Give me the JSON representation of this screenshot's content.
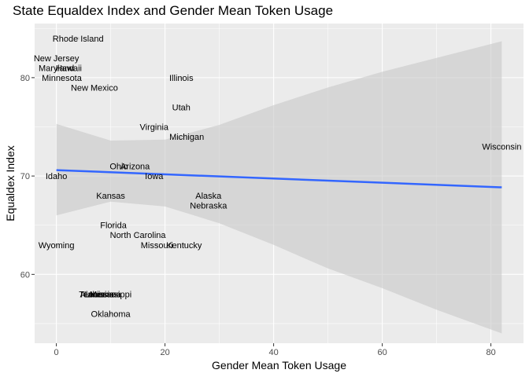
{
  "chart_data": {
    "type": "scatter",
    "title": "State Equaldex Index and Gender Mean Token Usage",
    "xlabel": "Gender Mean Token Usage",
    "ylabel": "Equaldex Index",
    "xlim": [
      -4,
      86
    ],
    "ylim": [
      53,
      85.5
    ],
    "xticks": [
      0,
      20,
      40,
      60,
      80
    ],
    "yticks": [
      60,
      70,
      80
    ],
    "grid": true,
    "colors": {
      "panel": "#ebebeb",
      "grid": "#ffffff",
      "point": "#d3d3d3",
      "smooth_line": "#3366ff",
      "ribbon": "#c8c8c8"
    },
    "points": [
      {
        "label": "Rhode Island",
        "x": 4,
        "y": 84
      },
      {
        "label": "New Jersey",
        "x": 0,
        "y": 82
      },
      {
        "label": "Maryland",
        "x": 0,
        "y": 81
      },
      {
        "label": "Hawaii",
        "x": 2.3,
        "y": 81
      },
      {
        "label": "Minnesota",
        "x": 1,
        "y": 80
      },
      {
        "label": "New Mexico",
        "x": 7,
        "y": 79
      },
      {
        "label": "Illinois",
        "x": 23,
        "y": 80
      },
      {
        "label": "Utah",
        "x": 23,
        "y": 77
      },
      {
        "label": "Virginia",
        "x": 18,
        "y": 75
      },
      {
        "label": "Michigan",
        "x": 24,
        "y": 74
      },
      {
        "label": "Wisconsin",
        "x": 82,
        "y": 73
      },
      {
        "label": "Ohio",
        "x": 11.5,
        "y": 71
      },
      {
        "label": "Arizona",
        "x": 14.5,
        "y": 71
      },
      {
        "label": "Idaho",
        "x": 0,
        "y": 70
      },
      {
        "label": "Iowa",
        "x": 18,
        "y": 70
      },
      {
        "label": "Kansas",
        "x": 10,
        "y": 68
      },
      {
        "label": "Alaska",
        "x": 28,
        "y": 68
      },
      {
        "label": "Nebraska",
        "x": 28,
        "y": 67
      },
      {
        "label": "Florida",
        "x": 10.5,
        "y": 65
      },
      {
        "label": "North Carolina",
        "x": 15,
        "y": 64
      },
      {
        "label": "Missouri",
        "x": 18.5,
        "y": 63
      },
      {
        "label": "Kentucky",
        "x": 23.5,
        "y": 63
      },
      {
        "label": "Wyoming",
        "x": 0,
        "y": 63
      },
      {
        "label": "Alabama",
        "x": 7.5,
        "y": 58
      },
      {
        "label": "Tennessee",
        "x": 8,
        "y": 58
      },
      {
        "label": "Louisiana",
        "x": 8.5,
        "y": 58
      },
      {
        "label": "Mississippi",
        "x": 10,
        "y": 58
      },
      {
        "label": "Oklahoma",
        "x": 10,
        "y": 56
      }
    ],
    "smooth": {
      "method": "lm",
      "x": [
        0,
        82
      ],
      "y": [
        70.6,
        68.85
      ]
    },
    "ribbon": {
      "x": [
        0,
        10,
        20,
        30,
        40,
        50,
        60,
        70,
        82
      ],
      "lower": [
        66.0,
        67.4,
        66.9,
        65.2,
        63.0,
        60.6,
        58.6,
        56.4,
        54.0
      ],
      "upper": [
        75.3,
        73.6,
        73.7,
        75.2,
        77.2,
        79.0,
        80.6,
        82.0,
        83.7
      ]
    }
  }
}
